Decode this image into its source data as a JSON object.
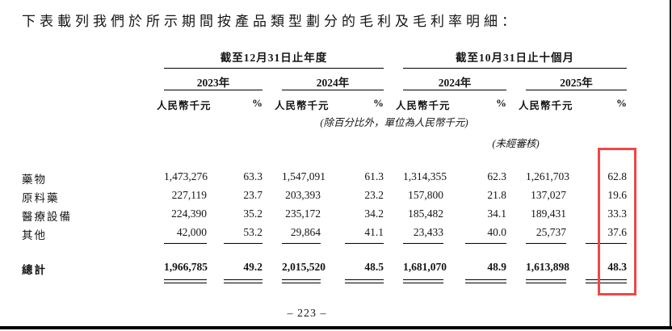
{
  "intro_text": "下表載列我們於所示期間按產品類型劃分的毛利及毛利率明細：",
  "table": {
    "span_headers": [
      "截至12月31日止年度",
      "截至10月31日止十個月"
    ],
    "year_headers": [
      "2023年",
      "2024年",
      "2024年",
      "2025年"
    ],
    "unit_label": "人民幣千元",
    "percent_label": "%",
    "unit_note": "(除百分比外，單位為人民幣千元)",
    "unaudited_note": "(未經審核)",
    "rows": [
      {
        "label": "藥物",
        "values": [
          "1,473,276",
          "63.3",
          "1,547,091",
          "61.3",
          "1,314,355",
          "62.3",
          "1,261,703",
          "62.8"
        ]
      },
      {
        "label": "原料藥",
        "values": [
          "227,119",
          "23.7",
          "203,393",
          "23.2",
          "157,800",
          "21.8",
          "137,027",
          "19.6"
        ]
      },
      {
        "label": "醫療設備",
        "values": [
          "224,390",
          "35.2",
          "235,172",
          "34.2",
          "185,482",
          "34.1",
          "189,431",
          "33.3"
        ]
      },
      {
        "label": "其他",
        "values": [
          "42,000",
          "53.2",
          "29,864",
          "41.1",
          "23,433",
          "40.0",
          "25,737",
          "37.6"
        ]
      }
    ],
    "total": {
      "label": "總計",
      "values": [
        "1,966,785",
        "49.2",
        "2,015,520",
        "48.5",
        "1,681,070",
        "48.9",
        "1,613,898",
        "48.3"
      ]
    }
  },
  "annotation": {
    "highlight_color": "#ef4746"
  },
  "footer": {
    "page_number": "– 223 –"
  }
}
